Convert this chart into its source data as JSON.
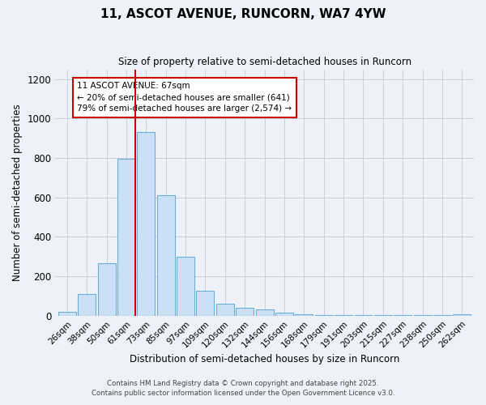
{
  "title_line1": "11, ASCOT AVENUE, RUNCORN, WA7 4YW",
  "title_line2": "Size of property relative to semi-detached houses in Runcorn",
  "xlabel": "Distribution of semi-detached houses by size in Runcorn",
  "ylabel": "Number of semi-detached properties",
  "categories": [
    "26sqm",
    "38sqm",
    "50sqm",
    "61sqm",
    "73sqm",
    "85sqm",
    "97sqm",
    "109sqm",
    "120sqm",
    "132sqm",
    "144sqm",
    "156sqm",
    "168sqm",
    "179sqm",
    "191sqm",
    "203sqm",
    "215sqm",
    "227sqm",
    "238sqm",
    "250sqm",
    "262sqm"
  ],
  "values": [
    20,
    110,
    265,
    795,
    930,
    610,
    300,
    125,
    60,
    38,
    30,
    15,
    8,
    5,
    3,
    2,
    2,
    1,
    1,
    1,
    8
  ],
  "bar_color": "#cce0f5",
  "bar_edgecolor": "#6aaed6",
  "grid_color": "#c8d0dc",
  "bg_color": "#eef2f8",
  "annotation_line1": "11 ASCOT AVENUE: 67sqm",
  "annotation_line2": "← 20% of semi-detached houses are smaller (641)",
  "annotation_line3": "79% of semi-detached houses are larger (2,574) →",
  "annotation_box_color": "#ffffff",
  "annotation_box_edgecolor": "#cc0000",
  "vline_color": "#cc0000",
  "ylim": [
    0,
    1250
  ],
  "yticks": [
    0,
    200,
    400,
    600,
    800,
    1000,
    1200
  ],
  "footnote1": "Contains HM Land Registry data © Crown copyright and database right 2025.",
  "footnote2": "Contains public sector information licensed under the Open Government Licence v3.0."
}
